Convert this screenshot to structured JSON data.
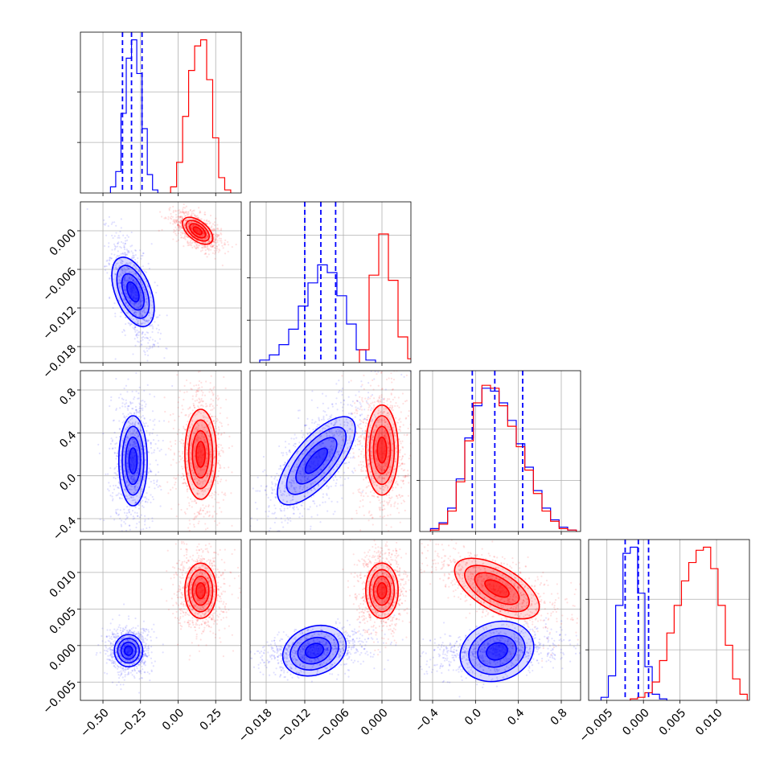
{
  "chart_data": {
    "type": "corner",
    "parameters": 4,
    "colors": {
      "blue": "#0000ff",
      "red": "#ff0000",
      "grid": "#b0b0b0"
    },
    "series_colors": [
      "blue",
      "red"
    ],
    "grid": true,
    "quantile_lines": {
      "color": "blue",
      "style": "dashed"
    },
    "axes": [
      {
        "lim": [
          -0.65,
          0.42
        ],
        "ticks": [
          -0.5,
          -0.25,
          0.0,
          0.25
        ],
        "labels": [
          "−0.50",
          "−0.25",
          "0.00",
          "0.25"
        ]
      },
      {
        "lim": [
          -0.0205,
          0.0045
        ],
        "ticks": [
          -0.018,
          -0.012,
          -0.006,
          0.0
        ],
        "labels": [
          "−0.018",
          "−0.012",
          "−0.006",
          "0.000"
        ]
      },
      {
        "lim": [
          -0.52,
          0.98
        ],
        "ticks": [
          -0.4,
          0.0,
          0.4,
          0.8
        ],
        "labels": [
          "−0.4",
          "0.0",
          "0.4",
          "0.8"
        ]
      },
      {
        "lim": [
          -0.0075,
          0.0145
        ],
        "ticks": [
          -0.005,
          0.0,
          0.005,
          0.01
        ],
        "labels": [
          "−0.005",
          "0.000",
          "0.005",
          "0.010"
        ]
      }
    ],
    "diagonal": [
      {
        "param": 0,
        "ymax": 1.05,
        "hist_ticks": [
          0.33,
          0.66
        ],
        "blue": {
          "bins": [
            -0.45,
            -0.415,
            -0.38,
            -0.345,
            -0.31,
            -0.275,
            -0.24,
            -0.205,
            -0.17
          ],
          "counts": [
            0.04,
            0.14,
            0.52,
            0.88,
            1.0,
            0.78,
            0.42,
            0.12,
            0.02
          ]
        },
        "red": {
          "bins": [
            -0.05,
            -0.01,
            0.03,
            0.07,
            0.11,
            0.15,
            0.19,
            0.23,
            0.27,
            0.31
          ],
          "counts": [
            0.04,
            0.2,
            0.5,
            0.8,
            0.96,
            1.0,
            0.74,
            0.36,
            0.1,
            0.02
          ]
        },
        "quantiles": [
          -0.37,
          -0.31,
          -0.24
        ]
      },
      {
        "param": 1,
        "ymax": 1.25,
        "hist_ticks": [
          0.33,
          0.66,
          0.99
        ],
        "blue": {
          "bins": [
            -0.019,
            -0.0175,
            -0.016,
            -0.0145,
            -0.013,
            -0.0115,
            -0.01,
            -0.0085,
            -0.007,
            -0.0055,
            -0.004,
            -0.0025
          ],
          "counts": [
            0.02,
            0.06,
            0.14,
            0.26,
            0.44,
            0.62,
            0.76,
            0.7,
            0.52,
            0.3,
            0.1,
            0.02
          ]
        },
        "red": {
          "bins": [
            -0.0035,
            -0.002,
            -0.0005,
            0.001,
            0.0025,
            0.004
          ],
          "counts": [
            0.1,
            0.68,
            1.0,
            0.64,
            0.2,
            0.03
          ]
        },
        "quantiles": [
          -0.012,
          -0.0095,
          -0.0072
        ]
      },
      {
        "param": 2,
        "ymax": 1.1,
        "hist_ticks": [
          0.35,
          0.7
        ],
        "blue": {
          "bins": [
            -0.42,
            -0.34,
            -0.26,
            -0.18,
            -0.1,
            -0.02,
            0.06,
            0.14,
            0.22,
            0.3,
            0.38,
            0.46,
            0.54,
            0.62,
            0.7,
            0.78,
            0.86
          ],
          "counts": [
            0.02,
            0.06,
            0.16,
            0.36,
            0.64,
            0.86,
            0.98,
            0.96,
            0.88,
            0.76,
            0.6,
            0.44,
            0.28,
            0.16,
            0.08,
            0.03,
            0.01
          ]
        },
        "red": {
          "bins": [
            -0.42,
            -0.34,
            -0.26,
            -0.18,
            -0.1,
            -0.02,
            0.06,
            0.14,
            0.22,
            0.3,
            0.38,
            0.46,
            0.54,
            0.62,
            0.7,
            0.78,
            0.86
          ],
          "counts": [
            0.01,
            0.05,
            0.14,
            0.34,
            0.62,
            0.88,
            1.0,
            0.98,
            0.86,
            0.72,
            0.58,
            0.42,
            0.26,
            0.14,
            0.07,
            0.02,
            0.01
          ]
        },
        "quantiles": [
          -0.03,
          0.18,
          0.44
        ]
      },
      {
        "param": 3,
        "ymax": 1.05,
        "hist_ticks": [
          0.33,
          0.66
        ],
        "blue": {
          "bins": [
            -0.0058,
            -0.0048,
            -0.0038,
            -0.0028,
            -0.0018,
            -0.0008,
            0.0002,
            0.0012,
            0.0022
          ],
          "counts": [
            0.02,
            0.16,
            0.62,
            0.96,
            1.0,
            0.7,
            0.22,
            0.04,
            0.01
          ]
        },
        "red": {
          "bins": [
            -0.0018,
            -0.0008,
            0.0002,
            0.0012,
            0.0022,
            0.0032,
            0.0042,
            0.0052,
            0.0062,
            0.0072,
            0.0082,
            0.0092,
            0.0102,
            0.0112,
            0.0122,
            0.0132
          ],
          "counts": [
            0.01,
            0.02,
            0.05,
            0.12,
            0.26,
            0.44,
            0.62,
            0.78,
            0.9,
            0.98,
            1.0,
            0.86,
            0.62,
            0.36,
            0.14,
            0.04
          ]
        },
        "quantiles": [
          -0.0025,
          -0.0007,
          0.0007
        ]
      }
    ],
    "pairs": [
      {
        "row": 1,
        "col": 0,
        "blue": {
          "center": [
            -0.3,
            -0.0095
          ],
          "sd": [
            0.047,
            0.0028
          ],
          "rho": -0.62
        },
        "red": {
          "center": [
            0.13,
            0.0
          ],
          "sd": [
            0.05,
            0.00095
          ],
          "rho": -0.55
        }
      },
      {
        "row": 2,
        "col": 0,
        "blue": {
          "center": [
            -0.3,
            0.14
          ],
          "sd": [
            0.045,
            0.2
          ],
          "rho": 0.0
        },
        "red": {
          "center": [
            0.15,
            0.2
          ],
          "sd": [
            0.05,
            0.2
          ],
          "rho": 0.0
        }
      },
      {
        "row": 2,
        "col": 1,
        "blue": {
          "center": [
            -0.0102,
            0.14
          ],
          "sd": [
            0.0028,
            0.2
          ],
          "rho": 0.72
        },
        "red": {
          "center": [
            0.0,
            0.24
          ],
          "sd": [
            0.0012,
            0.2
          ],
          "rho": 0.0
        }
      },
      {
        "row": 3,
        "col": 0,
        "blue": {
          "center": [
            -0.33,
            -0.0007
          ],
          "sd": [
            0.045,
            0.00105
          ],
          "rho": 0.0
        },
        "red": {
          "center": [
            0.15,
            0.0075
          ],
          "sd": [
            0.05,
            0.0018
          ],
          "rho": 0.0
        }
      },
      {
        "row": 3,
        "col": 1,
        "blue": {
          "center": [
            -0.0105,
            -0.0007
          ],
          "sd": [
            0.0028,
            0.00095
          ],
          "rho": 0.3
        },
        "red": {
          "center": [
            0.0,
            0.0075
          ],
          "sd": [
            0.0012,
            0.0018
          ],
          "rho": 0.0
        }
      },
      {
        "row": 3,
        "col": 2,
        "blue": {
          "center": [
            0.2,
            -0.0008
          ],
          "sd": [
            0.2,
            0.001
          ],
          "rho": 0.25
        },
        "red": {
          "center": [
            0.2,
            0.0078
          ],
          "sd": [
            0.2,
            0.0017
          ],
          "rho": -0.65
        }
      }
    ],
    "contour_levels_sigma": [
      0.6,
      1.1,
      1.6,
      2.1
    ]
  }
}
